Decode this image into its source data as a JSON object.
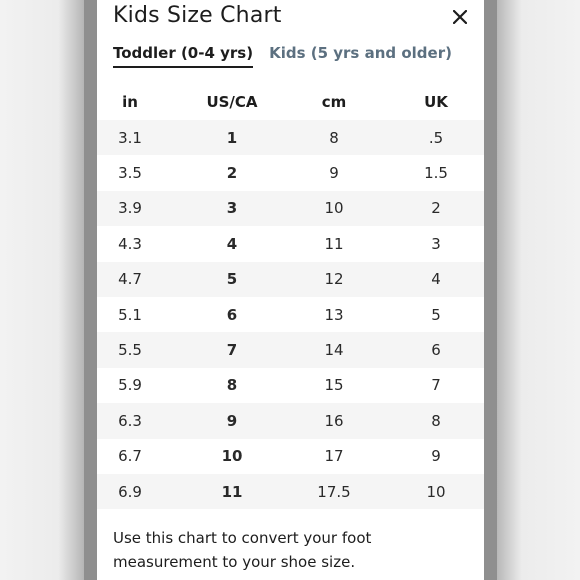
{
  "modal": {
    "title": "Kids Size Chart",
    "close_icon": "close-icon"
  },
  "tabs": [
    {
      "label": "Toddler (0-4 yrs)",
      "active": true
    },
    {
      "label": "Kids (5 yrs and older)",
      "active": false
    }
  ],
  "table": {
    "headers": [
      "in",
      "US/CA",
      "cm",
      "UK"
    ],
    "rows": [
      [
        "3.1",
        "1",
        "8",
        ".5"
      ],
      [
        "3.5",
        "2",
        "9",
        "1.5"
      ],
      [
        "3.9",
        "3",
        "10",
        "2"
      ],
      [
        "4.3",
        "4",
        "11",
        "3"
      ],
      [
        "4.7",
        "5",
        "12",
        "4"
      ],
      [
        "5.1",
        "6",
        "13",
        "5"
      ],
      [
        "5.5",
        "7",
        "14",
        "6"
      ],
      [
        "5.9",
        "8",
        "15",
        "7"
      ],
      [
        "6.3",
        "9",
        "16",
        "8"
      ],
      [
        "6.7",
        "10",
        "17",
        "9"
      ],
      [
        "6.9",
        "11",
        "17.5",
        "10"
      ]
    ]
  },
  "footer_note": "Use this chart to convert your foot measurement to your shoe size.",
  "colors": {
    "active_tab": "#1d1d1d",
    "inactive_tab": "#5c7080",
    "row_shade": "#f5f5f5"
  }
}
